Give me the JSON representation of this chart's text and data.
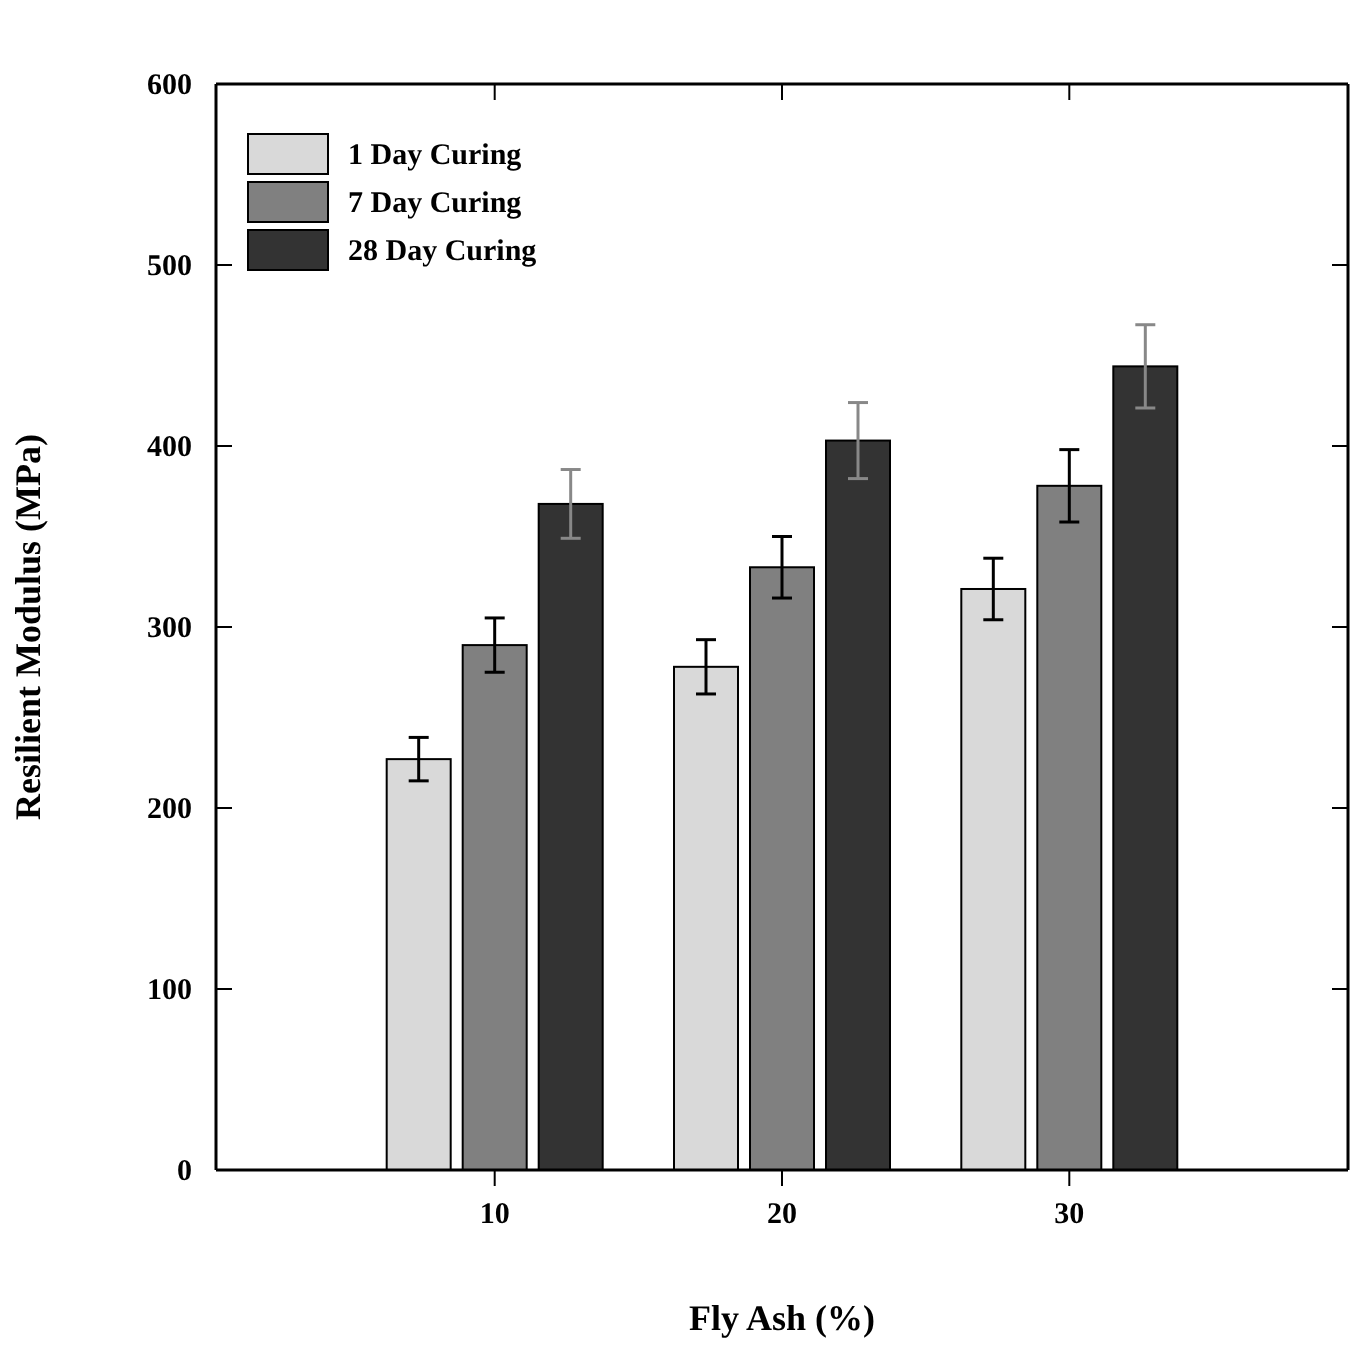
{
  "chart_data": {
    "type": "bar",
    "xlabel": "Fly Ash (%)",
    "ylabel": "Resilient Modulus (MPa)",
    "categories": [
      "10",
      "20",
      "30"
    ],
    "series": [
      {
        "name": "1 Day Curing",
        "color": "#d9d9d9",
        "values": [
          227,
          278,
          321
        ],
        "errors": [
          12,
          15,
          17
        ]
      },
      {
        "name": "7 Day Curing",
        "color": "#808080",
        "values": [
          290,
          333,
          378
        ],
        "errors": [
          15,
          17,
          20
        ]
      },
      {
        "name": "28 Day Curing",
        "color": "#333333",
        "values": [
          368,
          403,
          444
        ],
        "errors": [
          19,
          21,
          23
        ]
      }
    ],
    "ylim": [
      0,
      600
    ],
    "yticks": [
      0,
      100,
      200,
      300,
      400,
      500,
      600
    ],
    "grid": false,
    "legend": "top left"
  }
}
